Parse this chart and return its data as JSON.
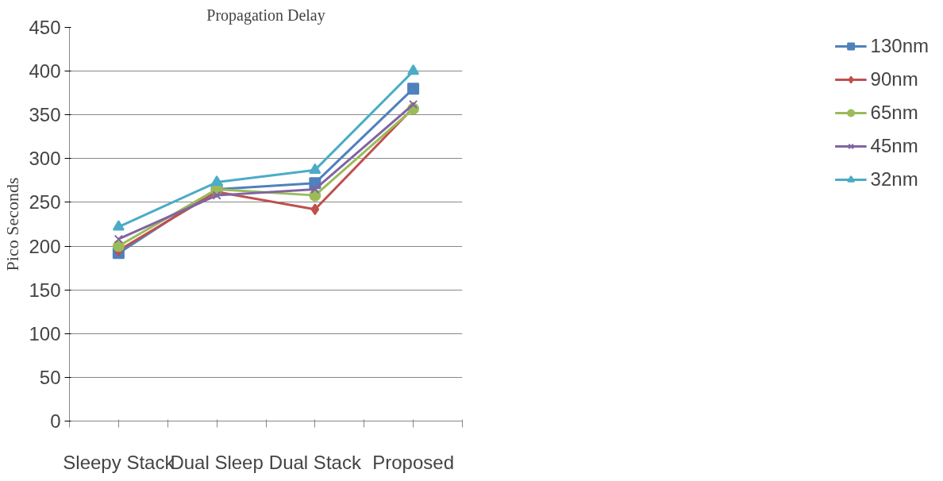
{
  "chart_data": {
    "type": "line",
    "title": "Propagation Delay",
    "ylabel": "Pico Seconds",
    "categories": [
      "Sleepy Stack",
      "Dual Sleep",
      "Dual Stack",
      "Proposed"
    ],
    "series": [
      {
        "name": "130nm",
        "color": "#4f81bd",
        "marker": "square",
        "values": [
          192,
          265,
          272,
          380
        ]
      },
      {
        "name": "90nm",
        "color": "#c0504d",
        "marker": "diamond",
        "values": [
          195,
          262,
          242,
          358
        ]
      },
      {
        "name": "65nm",
        "color": "#9bbb59",
        "marker": "circle",
        "values": [
          200,
          265,
          258,
          357
        ]
      },
      {
        "name": "45nm",
        "color": "#8064a2",
        "marker": "cross",
        "values": [
          208,
          258,
          265,
          362
        ]
      },
      {
        "name": "32nm",
        "color": "#4bacc6",
        "marker": "triangle",
        "values": [
          222,
          273,
          287,
          400
        ]
      }
    ],
    "ylim": [
      0,
      450
    ],
    "yticks": [
      0,
      50,
      100,
      150,
      200,
      250,
      300,
      350,
      400,
      450
    ],
    "grid": "y",
    "legend": "right"
  }
}
